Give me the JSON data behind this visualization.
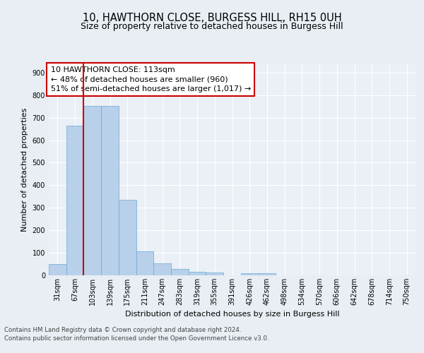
{
  "title": "10, HAWTHORN CLOSE, BURGESS HILL, RH15 0UH",
  "subtitle": "Size of property relative to detached houses in Burgess Hill",
  "xlabel": "Distribution of detached houses by size in Burgess Hill",
  "ylabel": "Number of detached properties",
  "bar_labels": [
    "31sqm",
    "67sqm",
    "103sqm",
    "139sqm",
    "175sqm",
    "211sqm",
    "247sqm",
    "283sqm",
    "319sqm",
    "355sqm",
    "391sqm",
    "426sqm",
    "462sqm",
    "498sqm",
    "534sqm",
    "570sqm",
    "606sqm",
    "642sqm",
    "678sqm",
    "714sqm",
    "750sqm"
  ],
  "bar_values": [
    50,
    665,
    752,
    752,
    335,
    108,
    52,
    27,
    17,
    12,
    0,
    8,
    10,
    0,
    0,
    0,
    0,
    0,
    0,
    0,
    0
  ],
  "bar_color": "#b8d0ea",
  "bar_edgecolor": "#6aaad4",
  "vline_x": 2.0,
  "vline_color": "#cc0000",
  "annotation_text": "10 HAWTHORN CLOSE: 113sqm\n← 48% of detached houses are smaller (960)\n51% of semi-detached houses are larger (1,017) →",
  "annotation_box_edgecolor": "#cc0000",
  "ylim": [
    0,
    940
  ],
  "yticks": [
    0,
    100,
    200,
    300,
    400,
    500,
    600,
    700,
    800,
    900
  ],
  "footer_line1": "Contains HM Land Registry data © Crown copyright and database right 2024.",
  "footer_line2": "Contains public sector information licensed under the Open Government Licence v3.0.",
  "bg_color": "#e8eef4",
  "plot_bg_color": "#eaf0f6",
  "title_fontsize": 10.5,
  "subtitle_fontsize": 9,
  "xlabel_fontsize": 8,
  "ylabel_fontsize": 8,
  "tick_fontsize": 7,
  "annotation_fontsize": 8,
  "footer_fontsize": 6.2
}
